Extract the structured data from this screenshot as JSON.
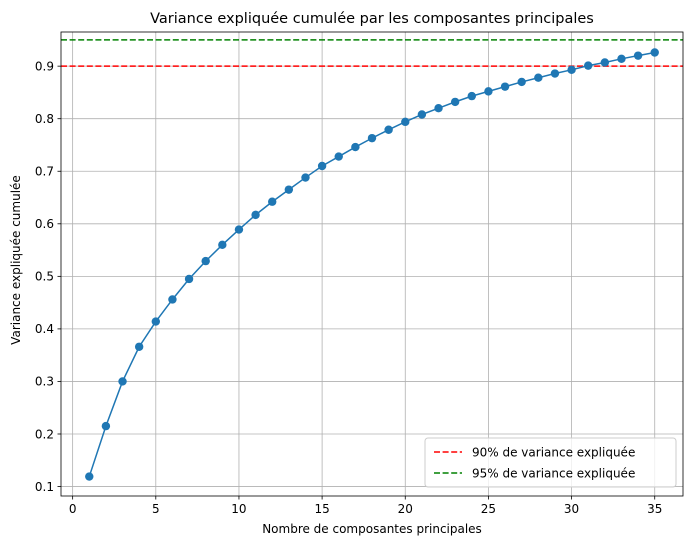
{
  "chart_data": {
    "type": "line",
    "title": "Variance expliquée cumulée par les composantes principales",
    "xlabel": "Nombre de composantes principales",
    "ylabel": "Variance expliquée cumulée",
    "xlim": [
      -0.7,
      36.7
    ],
    "ylim": [
      0.082,
      0.965
    ],
    "xticks": [
      0,
      5,
      10,
      15,
      20,
      25,
      30,
      35
    ],
    "yticks": [
      0.1,
      0.2,
      0.3,
      0.4,
      0.5,
      0.6,
      0.7,
      0.8,
      0.9
    ],
    "grid": true,
    "legend_position": "lower-right",
    "series": [
      {
        "color": "#1f77b4",
        "marker": "circle",
        "x": [
          1,
          2,
          3,
          4,
          5,
          6,
          7,
          8,
          9,
          10,
          11,
          12,
          13,
          14,
          15,
          16,
          17,
          18,
          19,
          20,
          21,
          22,
          23,
          24,
          25,
          26,
          27,
          28,
          29,
          30,
          31,
          32,
          33,
          34,
          35
        ],
        "values": [
          0.119,
          0.215,
          0.3,
          0.366,
          0.414,
          0.456,
          0.495,
          0.529,
          0.56,
          0.589,
          0.617,
          0.642,
          0.665,
          0.688,
          0.71,
          0.728,
          0.746,
          0.763,
          0.779,
          0.794,
          0.808,
          0.82,
          0.832,
          0.843,
          0.852,
          0.861,
          0.87,
          0.878,
          0.886,
          0.893,
          0.901,
          0.907,
          0.914,
          0.92,
          0.926
        ]
      }
    ],
    "reference_lines": [
      {
        "y": 0.9,
        "label": "90% de variance expliquée",
        "color": "#ff0000",
        "style": "dashed"
      },
      {
        "y": 0.95,
        "label": "95% de variance expliquée",
        "color": "#008000",
        "style": "dashed"
      }
    ]
  }
}
